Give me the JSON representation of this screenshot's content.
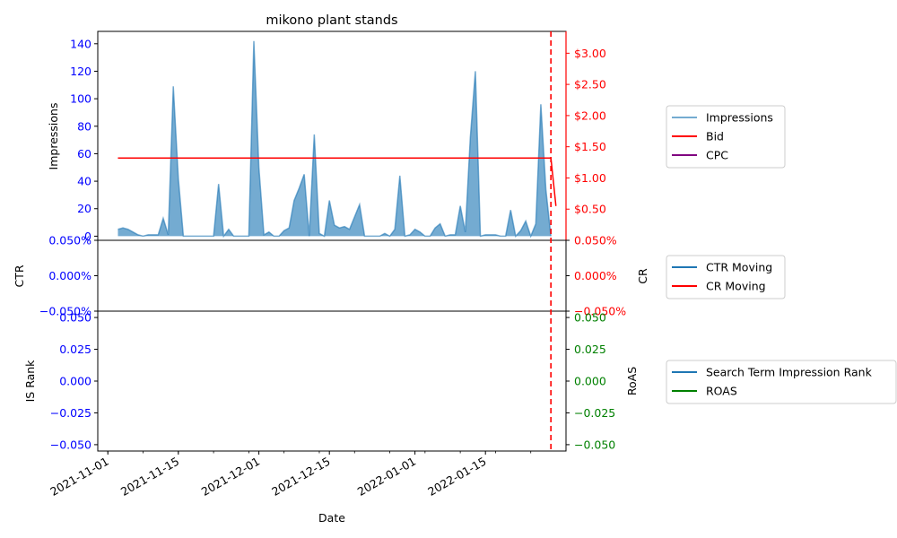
{
  "colors": {
    "impressions": "#1f77b4",
    "bid": "#ff0000",
    "cpc": "#800080",
    "ctr": "#1f77b4",
    "cr": "#ff0000",
    "rank": "#1f77b4",
    "roas": "#008000",
    "left_axis": "#0000ff",
    "right_axis_top": "#ff0000",
    "right_axis_bottom": "#008000"
  },
  "chart_data": {
    "type": "area",
    "title": "mikono plant stands",
    "xlabel": "Date",
    "x_ticks": [
      "2021-11-01",
      "2021-11-15",
      "2021-12-01",
      "2021-12-15",
      "2022-01-01",
      "2022-01-15"
    ],
    "x_range": [
      "2021-10-30",
      "2022-01-31"
    ],
    "marker_date": "2022-01-28",
    "panels": [
      {
        "ylabel_left": "Impressions",
        "ylabel_right": "",
        "ylim_left": [
          -3,
          149
        ],
        "ylim_right": [
          0,
          3.35
        ],
        "yticks_left": [
          "0",
          "20",
          "40",
          "60",
          "80",
          "100",
          "120",
          "140"
        ],
        "yticks_right": [
          "$0.50",
          "$1.00",
          "$1.50",
          "$2.00",
          "$2.50",
          "$3.00"
        ],
        "legend": [
          "Impressions",
          "Bid",
          "CPC"
        ],
        "series": [
          {
            "name": "Impressions",
            "axis": "left",
            "style": "area",
            "points": [
              [
                "2021-11-03",
                5
              ],
              [
                "2021-11-04",
                6
              ],
              [
                "2021-11-05",
                5
              ],
              [
                "2021-11-06",
                3
              ],
              [
                "2021-11-07",
                1
              ],
              [
                "2021-11-08",
                0
              ],
              [
                "2021-11-09",
                1
              ],
              [
                "2021-11-10",
                1
              ],
              [
                "2021-11-11",
                1
              ],
              [
                "2021-11-12",
                13
              ],
              [
                "2021-11-13",
                1
              ],
              [
                "2021-11-14",
                109
              ],
              [
                "2021-11-15",
                42
              ],
              [
                "2021-11-16",
                0
              ],
              [
                "2021-11-17",
                0
              ],
              [
                "2021-11-18",
                0
              ],
              [
                "2021-11-19",
                0
              ],
              [
                "2021-11-20",
                0
              ],
              [
                "2021-11-21",
                0
              ],
              [
                "2021-11-22",
                0
              ],
              [
                "2021-11-23",
                38
              ],
              [
                "2021-11-24",
                0
              ],
              [
                "2021-11-25",
                5
              ],
              [
                "2021-11-26",
                0
              ],
              [
                "2021-11-27",
                0
              ],
              [
                "2021-11-28",
                0
              ],
              [
                "2021-11-29",
                0
              ],
              [
                "2021-11-30",
                142
              ],
              [
                "2021-12-01",
                50
              ],
              [
                "2021-12-02",
                1
              ],
              [
                "2021-12-03",
                3
              ],
              [
                "2021-12-04",
                0
              ],
              [
                "2021-12-05",
                0
              ],
              [
                "2021-12-06",
                4
              ],
              [
                "2021-12-07",
                6
              ],
              [
                "2021-12-08",
                26
              ],
              [
                "2021-12-09",
                35
              ],
              [
                "2021-12-10",
                45
              ],
              [
                "2021-12-11",
                0
              ],
              [
                "2021-12-12",
                74
              ],
              [
                "2021-12-13",
                2
              ],
              [
                "2021-12-14",
                0
              ],
              [
                "2021-12-15",
                26
              ],
              [
                "2021-12-16",
                8
              ],
              [
                "2021-12-17",
                6
              ],
              [
                "2021-12-18",
                7
              ],
              [
                "2021-12-19",
                5
              ],
              [
                "2021-12-20",
                14
              ],
              [
                "2021-12-21",
                23
              ],
              [
                "2021-12-22",
                0
              ],
              [
                "2021-12-23",
                0
              ],
              [
                "2021-12-24",
                0
              ],
              [
                "2021-12-25",
                0
              ],
              [
                "2021-12-26",
                2
              ],
              [
                "2021-12-27",
                0
              ],
              [
                "2021-12-28",
                5
              ],
              [
                "2021-12-29",
                44
              ],
              [
                "2021-12-30",
                0
              ],
              [
                "2021-12-31",
                1
              ],
              [
                "2022-01-01",
                5
              ],
              [
                "2022-01-02",
                3
              ],
              [
                "2022-01-03",
                0
              ],
              [
                "2022-01-04",
                0
              ],
              [
                "2022-01-05",
                6
              ],
              [
                "2022-01-06",
                9
              ],
              [
                "2022-01-07",
                0
              ],
              [
                "2022-01-08",
                1
              ],
              [
                "2022-01-09",
                1
              ],
              [
                "2022-01-10",
                22
              ],
              [
                "2022-01-11",
                3
              ],
              [
                "2022-01-12",
                72
              ],
              [
                "2022-01-13",
                120
              ],
              [
                "2022-01-14",
                0
              ],
              [
                "2022-01-15",
                1
              ],
              [
                "2022-01-16",
                1
              ],
              [
                "2022-01-17",
                1
              ],
              [
                "2022-01-18",
                0
              ],
              [
                "2022-01-19",
                0
              ],
              [
                "2022-01-20",
                19
              ],
              [
                "2022-01-21",
                0
              ],
              [
                "2022-01-22",
                4
              ],
              [
                "2022-01-23",
                11
              ],
              [
                "2022-01-24",
                0
              ],
              [
                "2022-01-25",
                9
              ],
              [
                "2022-01-26",
                96
              ],
              [
                "2022-01-27",
                34
              ],
              [
                "2022-01-28",
                0
              ]
            ]
          },
          {
            "name": "Bid",
            "axis": "right",
            "style": "line",
            "points": [
              [
                "2021-11-03",
                1.32
              ],
              [
                "2022-01-28",
                1.32
              ],
              [
                "2022-01-29",
                0.55
              ]
            ]
          },
          {
            "name": "CPC",
            "axis": "right",
            "style": "line",
            "points": []
          }
        ]
      },
      {
        "ylabel_left": "CTR",
        "ylabel_right": "CR",
        "ylim_left": [
          -0.05,
          0.05
        ],
        "ylim_right": [
          -0.05,
          0.05
        ],
        "yticks_left": [
          "0.050%",
          "0.000%",
          "−0.050%"
        ],
        "yticks_right": [
          "0.050%",
          "0.000%",
          "−0.050%"
        ],
        "legend": [
          "CTR Moving",
          "CR Moving"
        ],
        "series": [
          {
            "name": "CTR Moving",
            "axis": "left",
            "style": "line",
            "points": []
          },
          {
            "name": "CR Moving",
            "axis": "right",
            "style": "line",
            "points": []
          }
        ]
      },
      {
        "ylabel_left": "IS Rank",
        "ylabel_right": "RoAS",
        "ylim_left": [
          -0.055,
          0.055
        ],
        "ylim_right": [
          -0.055,
          0.055
        ],
        "yticks_left": [
          "0.050",
          "0.025",
          "0.000",
          "−0.025",
          "−0.050"
        ],
        "yticks_right": [
          "0.050",
          "0.025",
          "0.000",
          "−0.025",
          "−0.050"
        ],
        "legend": [
          "Search Term Impression Rank",
          "ROAS"
        ],
        "series": [
          {
            "name": "Search Term Impression Rank",
            "axis": "left",
            "style": "line",
            "points": []
          },
          {
            "name": "ROAS",
            "axis": "right",
            "style": "line",
            "points": []
          }
        ]
      }
    ]
  }
}
